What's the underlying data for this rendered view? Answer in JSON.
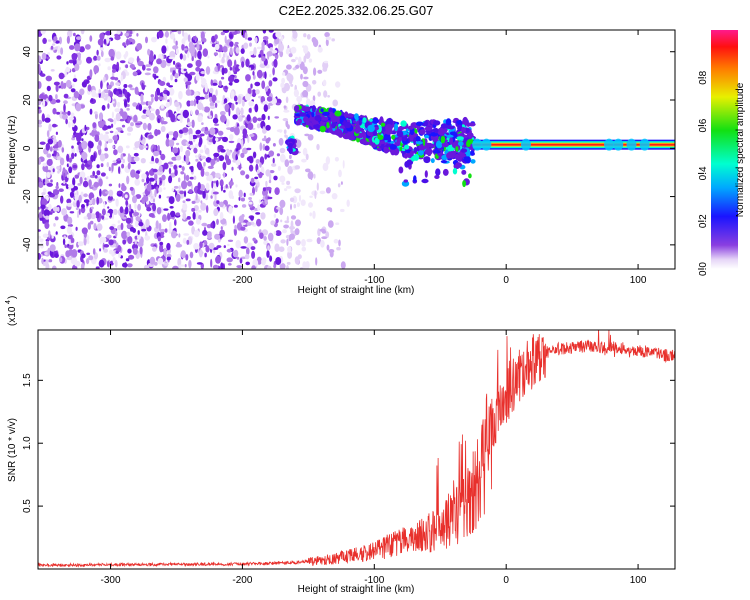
{
  "title": "C2E2.2025.332.06.25.G07",
  "chart_data": [
    {
      "type": "heatmap",
      "name": "spectrogram",
      "xlabel": "Height of straight line (km)",
      "ylabel": "Frequency (Hz)",
      "xlim": [
        -355,
        128
      ],
      "ylim": [
        -50,
        49
      ],
      "xticks": [
        -300,
        -200,
        -100,
        0,
        100
      ],
      "xtick_labels": [
        "-300",
        "-200",
        "-100",
        "0",
        "100"
      ],
      "yticks": [
        -40,
        -20,
        0,
        20,
        40
      ],
      "ytick_labels": [
        "-40",
        "-20",
        "0",
        "20",
        "40"
      ],
      "colorbar": {
        "label": "Normalized spectral amplitude",
        "range": [
          0,
          1
        ],
        "ticks": [
          0.0,
          0.2,
          0.4,
          0.6,
          0.8
        ],
        "tick_labels": [
          "0.0",
          "0.2",
          "0.4",
          "0.6",
          "0.8"
        ]
      },
      "features": {
        "noise_region_x": [
          -355,
          -140
        ],
        "signal_track": [
          {
            "x": -160,
            "f": 14
          },
          {
            "x": -130,
            "f": 11
          },
          {
            "x": -110,
            "f": 8
          },
          {
            "x": -90,
            "f": 5
          },
          {
            "x": -70,
            "f": 3
          },
          {
            "x": -50,
            "f": 4
          },
          {
            "x": -30,
            "f": 3
          },
          {
            "x": -10,
            "f": 2
          },
          {
            "x": 0,
            "f": 1.5
          },
          {
            "x": 128,
            "f": 1.5
          }
        ],
        "steady_tone_x": [
          -25,
          128
        ],
        "steady_tone_f": 1.5
      }
    },
    {
      "type": "line",
      "name": "snr",
      "xlabel": "Height of straight line (km)",
      "ylabel": "SNR (10 * v/v)",
      "yunit_label": "(x10",
      "yunit_exp": "4",
      "xlim": [
        -355,
        128
      ],
      "ylim": [
        0,
        1.9
      ],
      "xticks": [
        -300,
        -200,
        -100,
        0,
        100
      ],
      "xtick_labels": [
        "-300",
        "-200",
        "-100",
        "0",
        "100"
      ],
      "yticks": [
        0.5,
        1.0,
        1.5
      ],
      "ytick_labels": [
        "0.5",
        "1.0",
        "1.5"
      ],
      "color": "#e8302c",
      "envelope": {
        "x": [
          -355,
          -200,
          -160,
          -130,
          -110,
          -90,
          -70,
          -50,
          -40,
          -30,
          -20,
          -15,
          -10,
          -5,
          0,
          5,
          10,
          20,
          30,
          40,
          50,
          60,
          70,
          80,
          90,
          100,
          110,
          120,
          128
        ],
        "y": [
          0.03,
          0.04,
          0.05,
          0.08,
          0.12,
          0.18,
          0.24,
          0.32,
          0.4,
          0.52,
          0.75,
          0.9,
          1.05,
          1.25,
          1.35,
          1.45,
          1.55,
          1.65,
          1.72,
          1.75,
          1.76,
          1.77,
          1.76,
          1.77,
          1.75,
          1.74,
          1.72,
          1.7,
          1.69
        ]
      }
    }
  ]
}
